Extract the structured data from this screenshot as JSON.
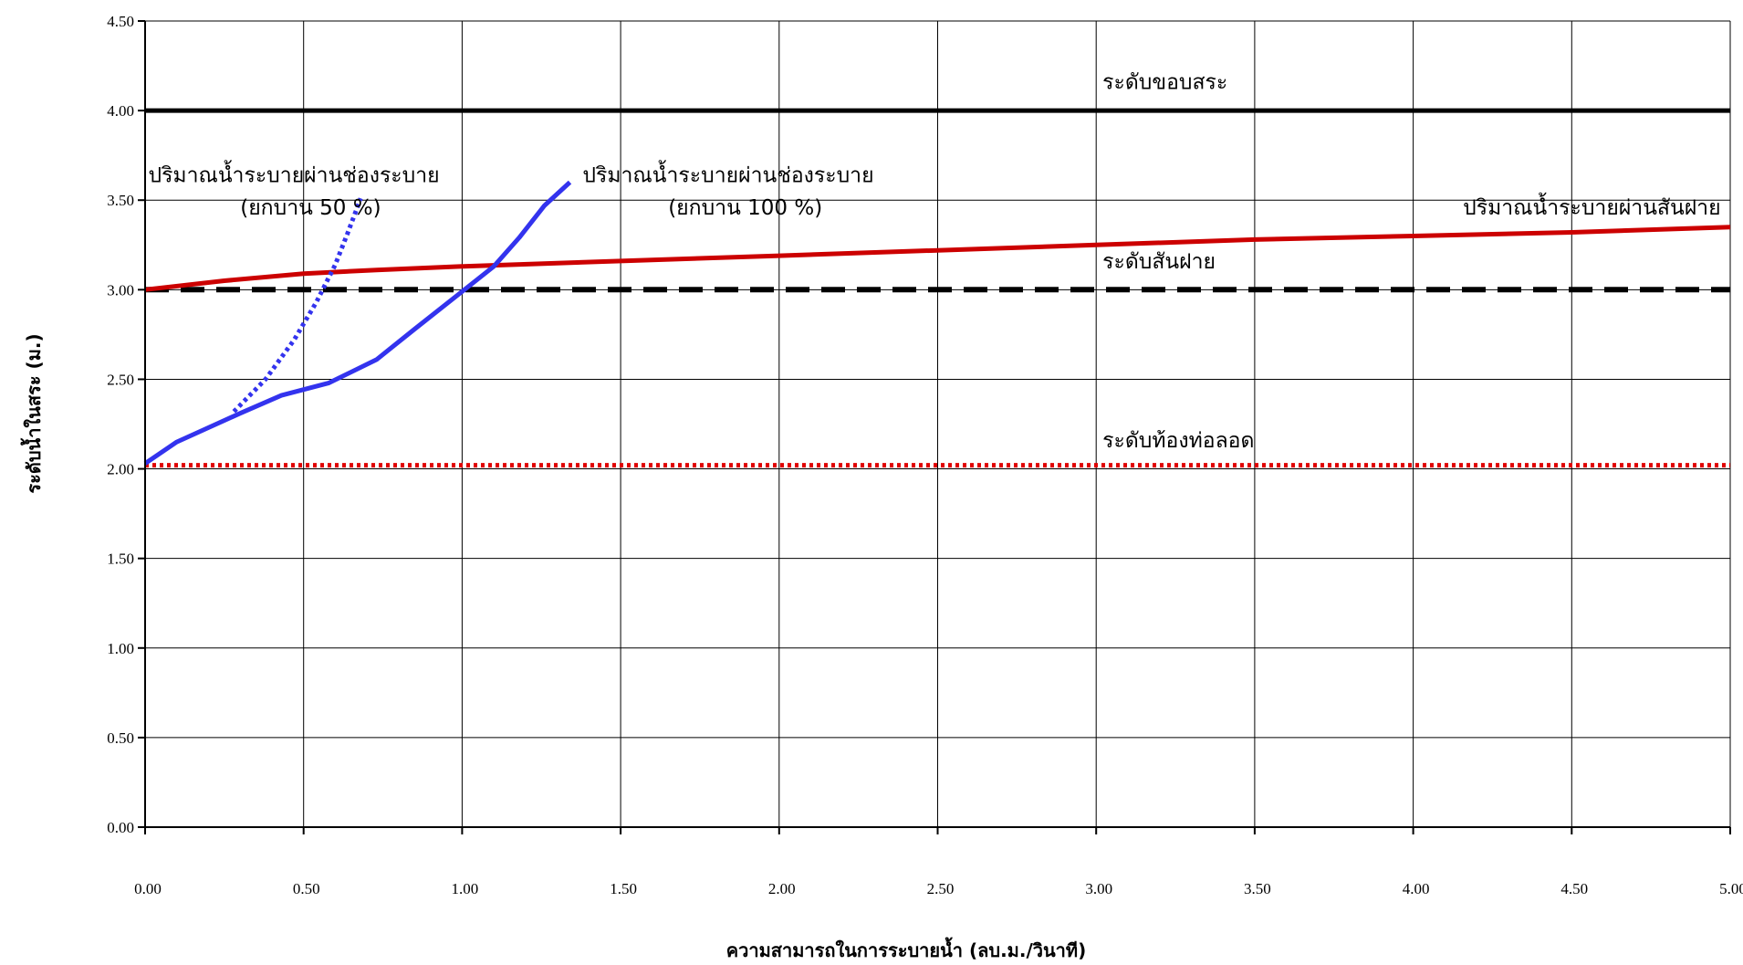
{
  "chart_data": {
    "type": "line",
    "xlabel": "ความสามารถในการระบายน้ำ (ลบ.ม./วินาที)",
    "ylabel": "ระดับน้ำในสระ (ม.)",
    "xlim": [
      0,
      5
    ],
    "ylim": [
      0,
      4.5
    ],
    "x_ticks": [
      "0.00",
      "0.50",
      "1.00",
      "1.50",
      "2.00",
      "2.50",
      "3.00",
      "3.50",
      "4.00",
      "4.50",
      "5.00"
    ],
    "y_ticks": [
      "0.00",
      "0.50",
      "1.00",
      "1.50",
      "2.00",
      "2.50",
      "3.00",
      "3.50",
      "4.00",
      "4.50"
    ],
    "grid": true,
    "legend": "none",
    "series": [
      {
        "color": "#000000",
        "style": "solid",
        "points": [
          [
            0,
            4.0
          ],
          [
            5,
            4.0
          ]
        ]
      },
      {
        "color": "#000000",
        "style": "dashed",
        "points": [
          [
            0,
            3.0
          ],
          [
            5,
            3.0
          ]
        ]
      },
      {
        "color": "#e00000",
        "style": "dotted",
        "points": [
          [
            0,
            2.02
          ],
          [
            5,
            2.02
          ]
        ]
      },
      {
        "color": "#cc0000",
        "style": "solid",
        "points": [
          [
            0.0,
            3.0
          ],
          [
            0.25,
            3.05
          ],
          [
            0.5,
            3.09
          ],
          [
            0.73,
            3.11
          ],
          [
            1.0,
            3.13
          ],
          [
            1.5,
            3.16
          ],
          [
            2.0,
            3.19
          ],
          [
            2.5,
            3.22
          ],
          [
            3.0,
            3.25
          ],
          [
            3.5,
            3.28
          ],
          [
            4.0,
            3.3
          ],
          [
            4.5,
            3.32
          ],
          [
            5.0,
            3.35
          ]
        ]
      },
      {
        "color": "#3333ee",
        "style": "solid",
        "points": [
          [
            0.0,
            2.03
          ],
          [
            0.1,
            2.15
          ],
          [
            0.2,
            2.23
          ],
          [
            0.3,
            2.31
          ],
          [
            0.43,
            2.41
          ],
          [
            0.58,
            2.48
          ],
          [
            0.73,
            2.61
          ],
          [
            0.85,
            2.78
          ],
          [
            1.0,
            2.99
          ],
          [
            1.1,
            3.13
          ],
          [
            1.18,
            3.29
          ],
          [
            1.26,
            3.47
          ],
          [
            1.34,
            3.6
          ]
        ]
      },
      {
        "color": "#3333ee",
        "style": "dotted",
        "points": [
          [
            0.28,
            2.32
          ],
          [
            0.38,
            2.5
          ],
          [
            0.47,
            2.72
          ],
          [
            0.54,
            2.93
          ],
          [
            0.6,
            3.14
          ],
          [
            0.64,
            3.32
          ],
          [
            0.68,
            3.51
          ]
        ]
      }
    ],
    "annotations": [
      {
        "id": "rim",
        "text": "ระดับขอบสระ",
        "x": 3.02,
        "y": 4.12
      },
      {
        "id": "crest",
        "text": "ระดับสันฝาย",
        "x": 3.02,
        "y": 3.12
      },
      {
        "id": "culvert",
        "text": "ระดับท้องท่อลอด",
        "x": 3.02,
        "y": 2.12
      },
      {
        "id": "gate50-a",
        "text": "ปริมาณน้ำระบายผ่านช่องระบาย",
        "x": 0.01,
        "y": 3.6
      },
      {
        "id": "gate50-b",
        "text": "(ยกบาน 50 %)",
        "x": 0.3,
        "y": 3.42
      },
      {
        "id": "gate100-a",
        "text": "ปริมาณน้ำระบายผ่านช่องระบาย",
        "x": 1.38,
        "y": 3.6
      },
      {
        "id": "gate100-b",
        "text": "(ยกบาน 100 %)",
        "x": 1.65,
        "y": 3.42
      },
      {
        "id": "weir",
        "text": "ปริมาณน้ำระบายผ่านสันฝาย",
        "x": 4.97,
        "y": 3.42,
        "anchor": "end"
      }
    ]
  }
}
